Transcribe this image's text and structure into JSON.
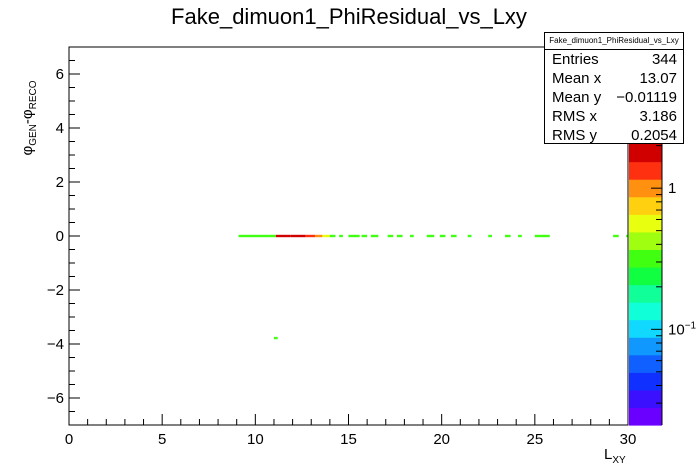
{
  "chart_data": {
    "type": "heatmap",
    "title": "Fake_dimuon1_PhiResidual_vs_Lxy",
    "xlabel": "L",
    "xlabel_sub": "XY",
    "ylabel_parts": [
      "φ",
      "GEN",
      "-φ",
      "RECO"
    ],
    "xlim": [
      0,
      30
    ],
    "ylim": [
      -7,
      7
    ],
    "x_ticks": [
      0,
      5,
      10,
      15,
      20,
      25,
      30
    ],
    "y_ticks": [
      -6,
      -4,
      -2,
      0,
      2,
      4,
      6
    ],
    "y_tick_labels": [
      "−6",
      "−4",
      "−2",
      "0",
      "2",
      "4",
      "6"
    ],
    "color_scale": "log",
    "color_ticks": [
      "1",
      "10",
      "−1"
    ],
    "palette": [
      "#6a00ff",
      "#3a10ff",
      "#1030ff",
      "#1060ff",
      "#1098ff",
      "#10d8ff",
      "#10ffd8",
      "#10ff98",
      "#10ff40",
      "#40ff10",
      "#a0ff10",
      "#e8ff10",
      "#ffd010",
      "#ff9010",
      "#ff3010",
      "#d00000"
    ],
    "cells": [
      {
        "x": 9.1,
        "y": 0.0,
        "w": 0.8,
        "level": 9
      },
      {
        "x": 9.9,
        "y": 0.0,
        "w": 0.8,
        "level": 9
      },
      {
        "x": 10.7,
        "y": 0.0,
        "w": 0.4,
        "level": 9
      },
      {
        "x": 11.1,
        "y": 0.0,
        "w": 0.8,
        "level": 15
      },
      {
        "x": 11.9,
        "y": 0.0,
        "w": 0.8,
        "level": 15
      },
      {
        "x": 12.7,
        "y": 0.0,
        "w": 0.5,
        "level": 14
      },
      {
        "x": 13.2,
        "y": 0.0,
        "w": 0.4,
        "level": 13
      },
      {
        "x": 13.6,
        "y": 0.0,
        "w": 0.4,
        "level": 11
      },
      {
        "x": 14.0,
        "y": 0.0,
        "w": 0.3,
        "level": 9
      },
      {
        "x": 14.5,
        "y": 0.0,
        "w": 0.2,
        "level": 9
      },
      {
        "x": 15.0,
        "y": 0.0,
        "w": 0.6,
        "level": 9
      },
      {
        "x": 15.7,
        "y": 0.0,
        "w": 0.3,
        "level": 9
      },
      {
        "x": 16.2,
        "y": 0.0,
        "w": 0.4,
        "level": 9
      },
      {
        "x": 17.1,
        "y": 0.0,
        "w": 0.3,
        "level": 9
      },
      {
        "x": 17.6,
        "y": 0.0,
        "w": 0.3,
        "level": 9
      },
      {
        "x": 18.3,
        "y": 0.0,
        "w": 0.2,
        "level": 9
      },
      {
        "x": 19.2,
        "y": 0.0,
        "w": 0.4,
        "level": 9
      },
      {
        "x": 19.9,
        "y": 0.0,
        "w": 0.3,
        "level": 9
      },
      {
        "x": 20.5,
        "y": 0.0,
        "w": 0.3,
        "level": 9
      },
      {
        "x": 21.4,
        "y": 0.0,
        "w": 0.2,
        "level": 9
      },
      {
        "x": 22.5,
        "y": 0.0,
        "w": 0.2,
        "level": 9
      },
      {
        "x": 23.4,
        "y": 0.0,
        "w": 0.3,
        "level": 9
      },
      {
        "x": 24.1,
        "y": 0.0,
        "w": 0.2,
        "level": 9
      },
      {
        "x": 25.0,
        "y": 0.0,
        "w": 0.8,
        "level": 9
      },
      {
        "x": 29.2,
        "y": 0.0,
        "w": 0.3,
        "level": 9
      },
      {
        "x": 29.9,
        "y": 0.0,
        "w": 0.1,
        "level": 9
      },
      {
        "x": 11.0,
        "y": -3.78,
        "w": 0.2,
        "level": 9
      }
    ]
  },
  "stats": {
    "title": "Fake_dimuon1_PhiResidual_vs_Lxy",
    "rows": [
      {
        "label": "Entries",
        "value": "344"
      },
      {
        "label": "Mean x",
        "value": "13.07"
      },
      {
        "label": "Mean y",
        "value": "−0.01119"
      },
      {
        "label": "RMS x",
        "value": "3.186"
      },
      {
        "label": "RMS y",
        "value": "0.2054"
      }
    ]
  }
}
